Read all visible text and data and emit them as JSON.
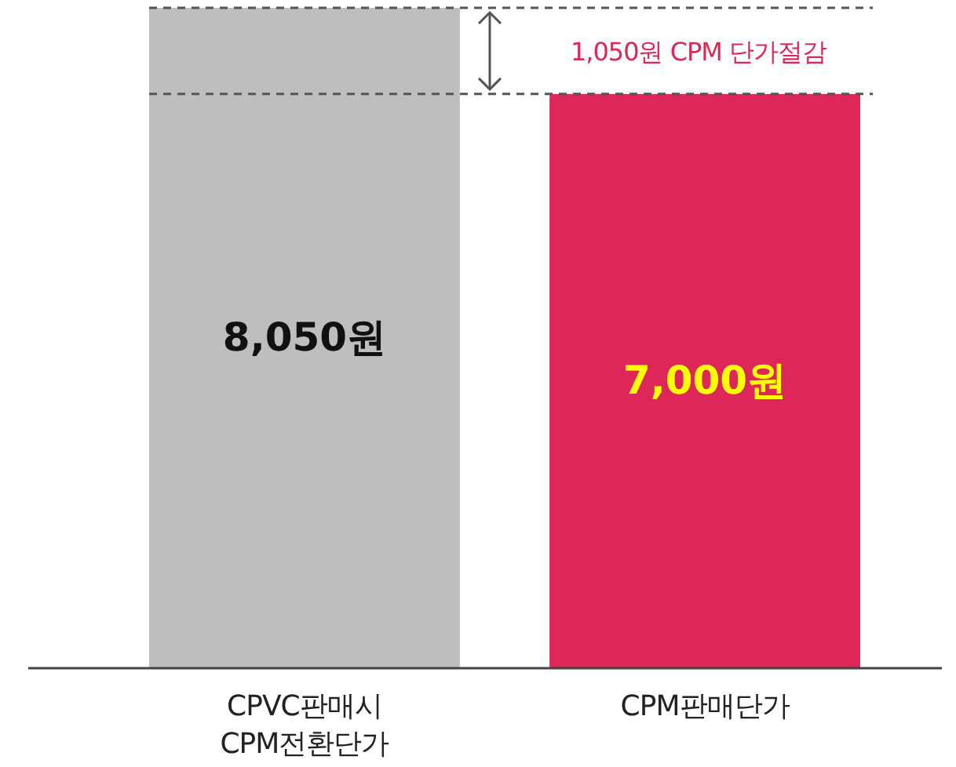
{
  "chart_data": {
    "type": "bar",
    "categories": [
      "CPVC판매시\nCPM전환단가",
      "CPM판매단가"
    ],
    "values": [
      8050,
      7000
    ],
    "colors": [
      "#bebebe",
      "#dc2758"
    ],
    "value_labels": [
      "8,050원",
      "7,000원"
    ],
    "ref_lines": [
      {
        "axis": "y",
        "value": 8050,
        "color": "#555555",
        "line_style": "dashed"
      },
      {
        "axis": "y",
        "value": 7000,
        "color": "#555555",
        "line_style": "dashed"
      }
    ],
    "annotations": [
      "1,050원 CPM 단가절감"
    ]
  }
}
